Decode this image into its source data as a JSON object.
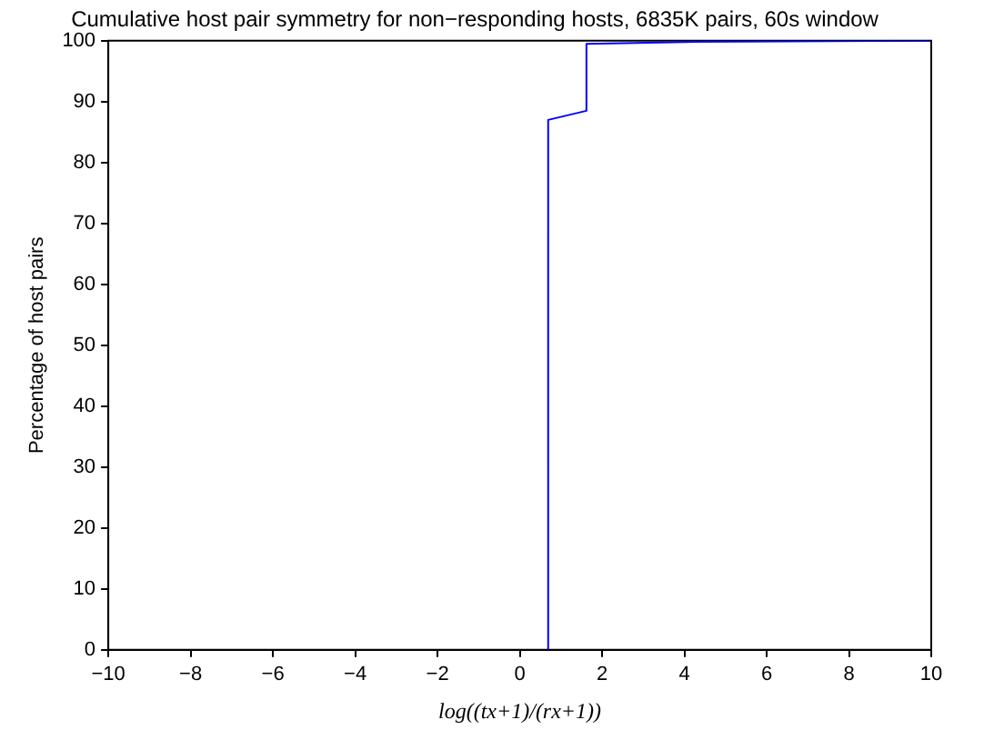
{
  "chart_data": {
    "type": "line",
    "title": "Cumulative host pair symmetry for non−responding hosts, 6835K pairs, 60s window",
    "xlabel": "log((tx+1)/(rx+1))",
    "ylabel": "Percentage of host pairs",
    "x": [
      0.69,
      0.69,
      1.62,
      1.62,
      4,
      10
    ],
    "series": [
      {
        "color": "#0000ff",
        "values": [
          0,
          87,
          88.5,
          99.5,
          99.8,
          100
        ]
      }
    ],
    "xlim": [
      -10,
      10
    ],
    "xticks": [
      -10,
      -8,
      -6,
      -4,
      -2,
      0,
      2,
      4,
      6,
      8,
      10
    ],
    "ylim": [
      0,
      100
    ],
    "yticks": [
      0,
      10,
      20,
      30,
      40,
      50,
      60,
      70,
      80,
      90,
      100
    ],
    "grid": false,
    "legend": false,
    "marker": "none",
    "line_style": "solid"
  }
}
